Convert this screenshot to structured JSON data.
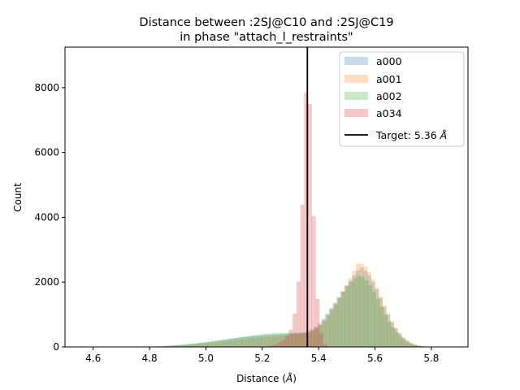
{
  "chart_data": {
    "type": "histogram",
    "title": "Distance between :2SJ@C10 and :2SJ@C19",
    "subtitle": "in phase \"attach_l_restraints\"",
    "xlabel": "Distance (Å)",
    "xlabel_text": "Distance (",
    "xlabel_unit": "Å",
    "xlabel_close": ")",
    "ylabel": "Count",
    "xlim": [
      4.5,
      5.93
    ],
    "ylim": [
      0,
      9250
    ],
    "xticks": [
      4.6,
      4.8,
      5.0,
      5.2,
      5.4,
      5.6,
      5.8
    ],
    "xtick_labels": [
      "4.6",
      "4.8",
      "5.0",
      "5.2",
      "5.4",
      "5.6",
      "5.8"
    ],
    "yticks": [
      0,
      2000,
      4000,
      6000,
      8000
    ],
    "ytick_labels": [
      "0",
      "2000",
      "4000",
      "6000",
      "8000"
    ],
    "bin_width": 0.0135,
    "legend_position": "upper-right",
    "series": [
      {
        "name": "a000",
        "color": "#1f77b4",
        "opacity": 0.25,
        "bins": [
          [
            4.85,
            20
          ],
          [
            4.88,
            40
          ],
          [
            4.92,
            70
          ],
          [
            4.96,
            100
          ],
          [
            5.0,
            140
          ],
          [
            5.04,
            190
          ],
          [
            5.08,
            240
          ],
          [
            5.12,
            290
          ],
          [
            5.16,
            330
          ],
          [
            5.2,
            360
          ],
          [
            5.24,
            380
          ],
          [
            5.28,
            400
          ],
          [
            5.32,
            420
          ],
          [
            5.35,
            450
          ],
          [
            5.38,
            550
          ],
          [
            5.4,
            700
          ],
          [
            5.42,
            900
          ],
          [
            5.44,
            1150
          ],
          [
            5.46,
            1400
          ],
          [
            5.48,
            1650
          ],
          [
            5.5,
            1900
          ],
          [
            5.52,
            2150
          ],
          [
            5.54,
            2380
          ],
          [
            5.55,
            2450
          ],
          [
            5.56,
            2400
          ],
          [
            5.58,
            2200
          ],
          [
            5.6,
            1900
          ],
          [
            5.62,
            1500
          ],
          [
            5.64,
            1100
          ],
          [
            5.66,
            750
          ],
          [
            5.68,
            480
          ],
          [
            5.7,
            280
          ],
          [
            5.72,
            150
          ],
          [
            5.74,
            70
          ],
          [
            5.76,
            30
          ],
          [
            5.78,
            10
          ],
          [
            5.8,
            5
          ]
        ]
      },
      {
        "name": "a001",
        "color": "#ff7f0e",
        "opacity": 0.25,
        "bins": [
          [
            4.85,
            15
          ],
          [
            4.9,
            30
          ],
          [
            4.95,
            60
          ],
          [
            5.0,
            100
          ],
          [
            5.05,
            150
          ],
          [
            5.1,
            200
          ],
          [
            5.15,
            260
          ],
          [
            5.2,
            300
          ],
          [
            5.25,
            340
          ],
          [
            5.3,
            370
          ],
          [
            5.34,
            400
          ],
          [
            5.37,
            480
          ],
          [
            5.4,
            650
          ],
          [
            5.42,
            850
          ],
          [
            5.44,
            1100
          ],
          [
            5.46,
            1350
          ],
          [
            5.48,
            1650
          ],
          [
            5.5,
            1950
          ],
          [
            5.52,
            2250
          ],
          [
            5.53,
            2450
          ],
          [
            5.54,
            2600
          ],
          [
            5.56,
            2550
          ],
          [
            5.58,
            2300
          ],
          [
            5.6,
            1950
          ],
          [
            5.62,
            1550
          ],
          [
            5.64,
            1150
          ],
          [
            5.66,
            800
          ],
          [
            5.68,
            500
          ],
          [
            5.7,
            300
          ],
          [
            5.72,
            160
          ],
          [
            5.74,
            80
          ],
          [
            5.76,
            35
          ],
          [
            5.78,
            12
          ],
          [
            5.8,
            4
          ]
        ]
      },
      {
        "name": "a002",
        "color": "#2ca02c",
        "opacity": 0.25,
        "bins": [
          [
            4.8,
            10
          ],
          [
            4.85,
            30
          ],
          [
            4.9,
            60
          ],
          [
            4.95,
            100
          ],
          [
            5.0,
            150
          ],
          [
            5.05,
            210
          ],
          [
            5.1,
            270
          ],
          [
            5.15,
            330
          ],
          [
            5.2,
            400
          ],
          [
            5.25,
            430
          ],
          [
            5.3,
            440
          ],
          [
            5.34,
            430
          ],
          [
            5.37,
            450
          ],
          [
            5.4,
            600
          ],
          [
            5.42,
            800
          ],
          [
            5.44,
            1050
          ],
          [
            5.46,
            1300
          ],
          [
            5.48,
            1600
          ],
          [
            5.5,
            1850
          ],
          [
            5.52,
            2050
          ],
          [
            5.54,
            2200
          ],
          [
            5.56,
            2150
          ],
          [
            5.58,
            1950
          ],
          [
            5.6,
            1650
          ],
          [
            5.62,
            1300
          ],
          [
            5.64,
            950
          ],
          [
            5.66,
            650
          ],
          [
            5.68,
            420
          ],
          [
            5.7,
            250
          ],
          [
            5.72,
            130
          ],
          [
            5.74,
            60
          ],
          [
            5.76,
            25
          ],
          [
            5.78,
            8
          ]
        ]
      },
      {
        "name": "a034",
        "color": "#d62728",
        "opacity": 0.25,
        "bins": [
          [
            5.22,
            20
          ],
          [
            5.25,
            80
          ],
          [
            5.28,
            250
          ],
          [
            5.3,
            500
          ],
          [
            5.31,
            800
          ],
          [
            5.32,
            1300
          ],
          [
            5.33,
            2200
          ],
          [
            5.34,
            3800
          ],
          [
            5.35,
            7700
          ],
          [
            5.36,
            8000
          ],
          [
            5.37,
            7400
          ],
          [
            5.38,
            4500
          ],
          [
            5.39,
            2200
          ],
          [
            5.4,
            900
          ],
          [
            5.41,
            350
          ],
          [
            5.42,
            100
          ],
          [
            5.43,
            30
          ]
        ]
      }
    ],
    "target": {
      "label": "Target: 5.36 Å",
      "label_text": "Target: 5.36 ",
      "label_unit": "Å",
      "value": 5.36,
      "color": "#000000"
    }
  }
}
